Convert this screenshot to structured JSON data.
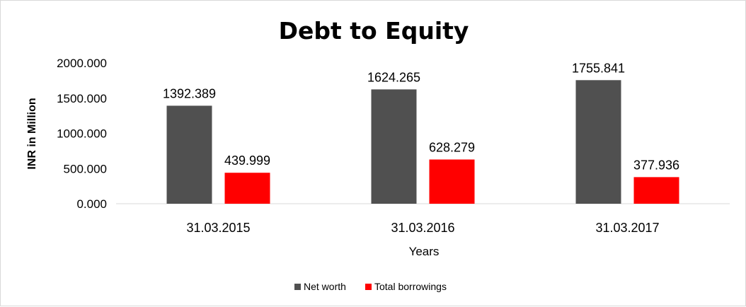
{
  "chart_data": {
    "type": "bar",
    "title": "Debt to Equity",
    "xlabel": "Years",
    "ylabel": "INR in Million",
    "categories": [
      "31.03.2015",
      "31.03.2016",
      "31.03.2017"
    ],
    "series": [
      {
        "name": "Net worth",
        "color": "#505050",
        "values": [
          1392.389,
          1624.265,
          1755.841
        ],
        "labels": [
          "1392.389",
          "1624.265",
          "1755.841"
        ]
      },
      {
        "name": "Total borrowings",
        "color": "#ff0000",
        "values": [
          439.999,
          628.279,
          377.936
        ],
        "labels": [
          "439.999",
          "628.279",
          "377.936"
        ]
      }
    ],
    "yticks": [
      "0.000",
      "500.000",
      "1000.000",
      "1500.000",
      "2000.000"
    ],
    "ylim": [
      0,
      2000
    ],
    "grid": false,
    "legend": "bottom"
  }
}
